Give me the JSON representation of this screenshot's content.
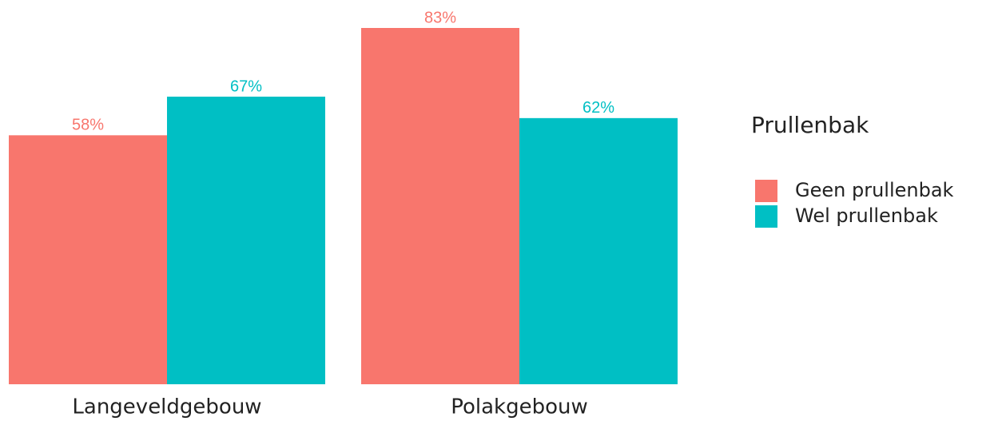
{
  "chart_data": {
    "type": "bar",
    "categories": [
      "Langeveldgebouw",
      "Polakgebouw"
    ],
    "legend_title": "Prullenbak",
    "legend": "right",
    "series": [
      {
        "name": "Geen prullenbak",
        "color": "#F8766D",
        "values": [
          58,
          83
        ],
        "value_labels": [
          "58%",
          "83%"
        ]
      },
      {
        "name": "Wel prullenbak",
        "color": "#00BFC4",
        "values": [
          67,
          62
        ],
        "value_labels": [
          "67%",
          "62%"
        ]
      }
    ]
  }
}
